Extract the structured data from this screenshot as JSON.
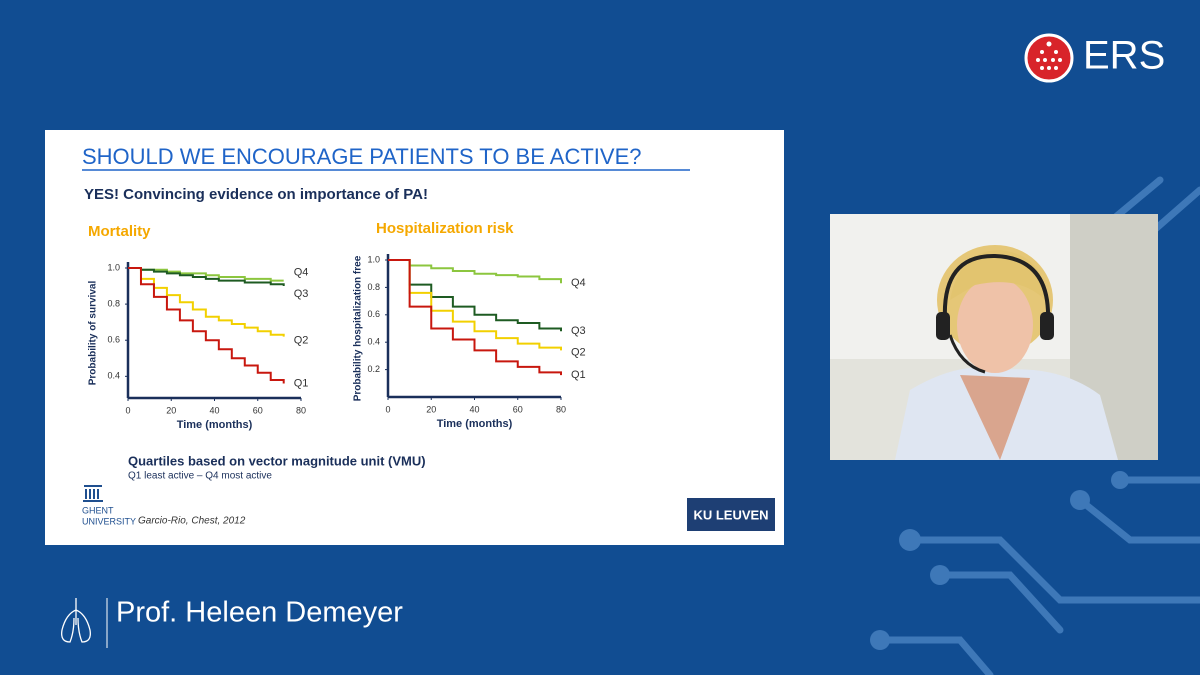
{
  "header": {
    "logo_text": "ERS"
  },
  "slide": {
    "title": "SHOULD WE ENCOURAGE PATIENTS TO BE ACTIVE?",
    "subtitle": "YES! Convincing evidence on importance of PA!",
    "note_title": "Quartiles based on vector magnitude unit (VMU)",
    "note": "Q1 least active – Q4 most active",
    "citation": "Garcio-Rio, Chest, 2012",
    "left_logo": [
      "GHENT",
      "UNIVERSITY"
    ],
    "right_logo": "KU LEUVEN"
  },
  "chart_data": [
    {
      "type": "line",
      "title": "Mortality",
      "x_label": "Time (months)",
      "y_label": "Probability of survival",
      "x": [
        0,
        6,
        12,
        18,
        24,
        30,
        36,
        42,
        48,
        54,
        60,
        66,
        72
      ],
      "xlim": [
        0,
        80
      ],
      "xticks": [
        0,
        20,
        40,
        60,
        80
      ],
      "ylim": [
        0.28,
        1.0
      ],
      "yticks": [
        {
          "value": 1,
          "label": "1.0"
        },
        0.8,
        0.6,
        0.4
      ],
      "series": [
        {
          "name": "Q4",
          "color": "#8cc63f",
          "values": [
            1,
            0.99,
            0.99,
            0.98,
            0.97,
            0.97,
            0.96,
            0.95,
            0.95,
            0.94,
            0.94,
            0.93,
            0.93
          ]
        },
        {
          "name": "Q3",
          "color": "#1e5b22",
          "values": [
            1,
            0.99,
            0.98,
            0.97,
            0.96,
            0.95,
            0.94,
            0.93,
            0.93,
            0.92,
            0.92,
            0.91,
            0.9
          ]
        },
        {
          "name": "Q2",
          "color": "#f2d000",
          "values": [
            1,
            0.94,
            0.89,
            0.85,
            0.81,
            0.77,
            0.73,
            0.71,
            0.69,
            0.67,
            0.65,
            0.63,
            0.62
          ]
        },
        {
          "name": "Q1",
          "color": "#c8170e",
          "values": [
            1,
            0.91,
            0.84,
            0.77,
            0.71,
            0.65,
            0.6,
            0.55,
            0.5,
            0.46,
            0.42,
            0.38,
            0.36
          ]
        }
      ]
    },
    {
      "type": "line",
      "title": "Hospitalization risk",
      "x_label": "Time (months)",
      "y_label": "Probability hospitalization free",
      "x": [
        0,
        10,
        20,
        30,
        40,
        50,
        60,
        70,
        80
      ],
      "xlim": [
        0,
        80
      ],
      "xticks": [
        0,
        20,
        40,
        60,
        80
      ],
      "ylim": [
        0,
        1.0
      ],
      "yticks": [
        {
          "value": 1,
          "label": "1.0"
        },
        0.8,
        0.6,
        0.4,
        0.2
      ],
      "series": [
        {
          "name": "Q4",
          "color": "#8cc63f",
          "values": [
            1,
            0.96,
            0.94,
            0.92,
            0.9,
            0.89,
            0.88,
            0.86,
            0.83
          ]
        },
        {
          "name": "Q3",
          "color": "#1e5b22",
          "values": [
            1,
            0.82,
            0.73,
            0.66,
            0.6,
            0.56,
            0.54,
            0.5,
            0.48
          ]
        },
        {
          "name": "Q2",
          "color": "#f2d000",
          "values": [
            1,
            0.76,
            0.63,
            0.55,
            0.48,
            0.43,
            0.39,
            0.36,
            0.34
          ]
        },
        {
          "name": "Q1",
          "color": "#c8170e",
          "values": [
            1,
            0.66,
            0.5,
            0.42,
            0.34,
            0.26,
            0.22,
            0.18,
            0.16
          ]
        }
      ]
    }
  ],
  "speaker": {
    "name": "Prof. Heleen Demeyer"
  }
}
